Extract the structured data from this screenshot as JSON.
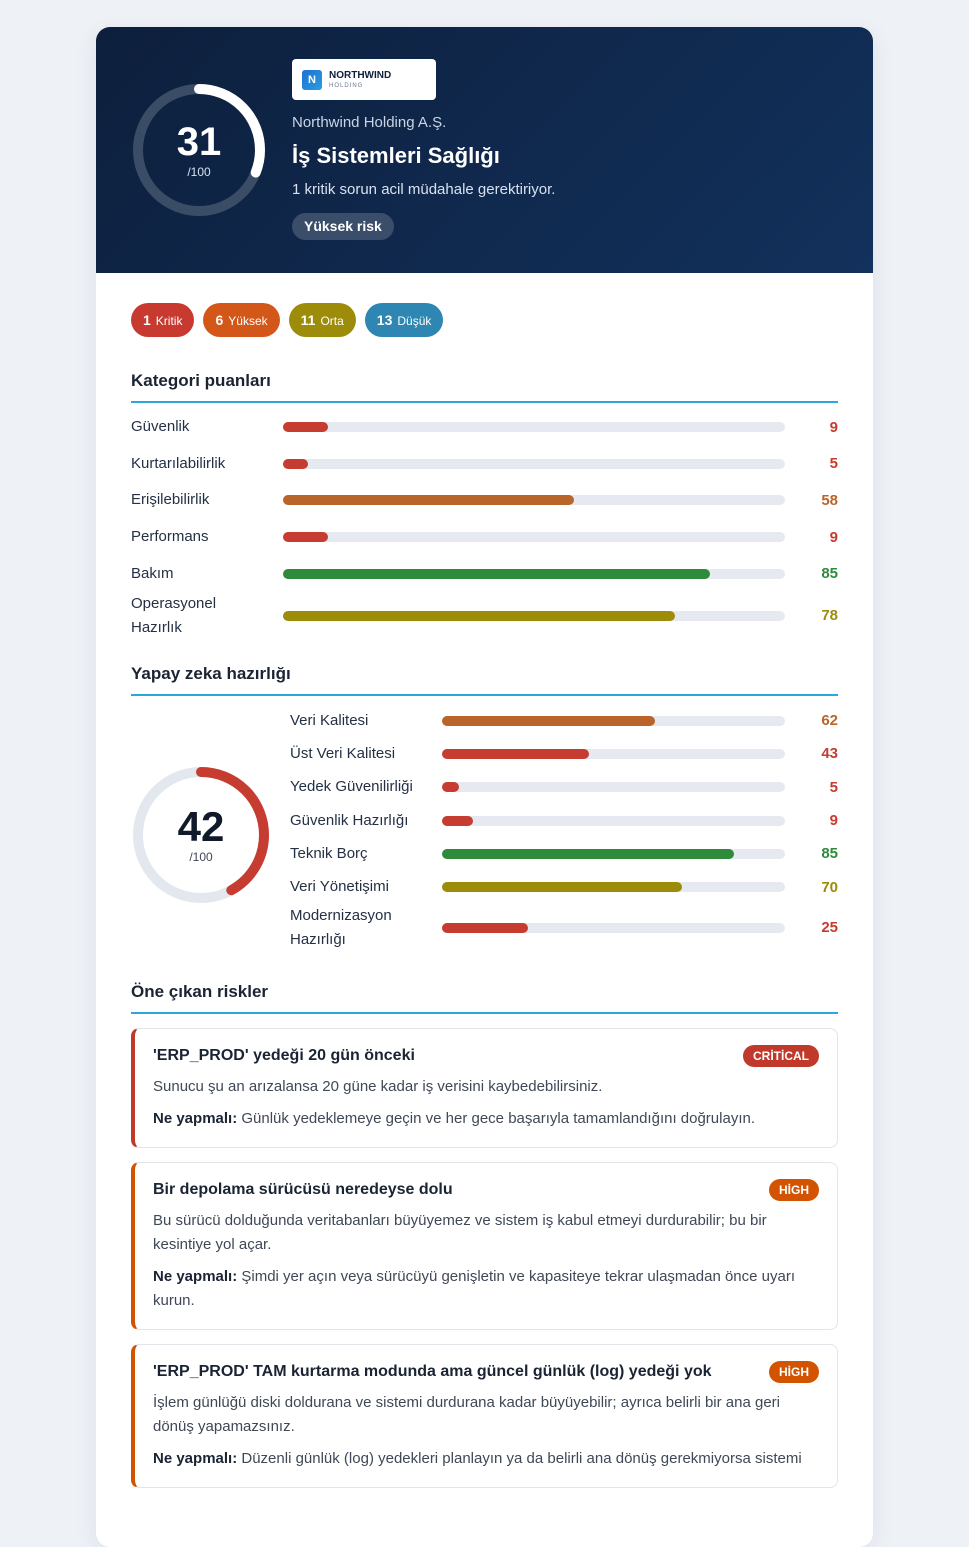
{
  "header": {
    "logo_letter": "N",
    "logo_name": "NORTHWIND",
    "logo_sub": "HOLDING",
    "company": "Northwind Holding A.Ş.",
    "title": "İş Sistemleri Sağlığı",
    "subtitle": "1 kritik sorun acil müdahale gerektiriyor.",
    "badge": "Yüksek risk",
    "score": 31,
    "score_max": {
      "value": 100,
      "label": "/100"
    }
  },
  "severity_counts": [
    {
      "count": 1,
      "label": "Kritik",
      "color": "#c83a30"
    },
    {
      "count": 6,
      "label": "Yüksek",
      "color": "#d4571a"
    },
    {
      "count": 11,
      "label": "Orta",
      "color": "#9c8c0a"
    },
    {
      "count": 13,
      "label": "Düşük",
      "color": "#2e86b2"
    }
  ],
  "category_scores": {
    "title": "Kategori puanları",
    "items": [
      {
        "label": "Güvenlik",
        "value": 9,
        "color": "#c63c31"
      },
      {
        "label": "Kurtarılabilirlik",
        "value": 5,
        "color": "#c63c31"
      },
      {
        "label": "Erişilebilirlik",
        "value": 58,
        "color": "#b9652a"
      },
      {
        "label": "Performans",
        "value": 9,
        "color": "#c63c31"
      },
      {
        "label": "Bakım",
        "value": 85,
        "color": "#2e8b3a"
      },
      {
        "label": "Operasyonel Hazırlık",
        "value": 78,
        "color": "#9c8c0a"
      }
    ]
  },
  "ai_readiness": {
    "title": "Yapay zeka hazırlığı",
    "score": 42,
    "score_max": {
      "value": 100,
      "label": "/100"
    },
    "color": "#c63c31",
    "items": [
      {
        "label": "Veri Kalitesi",
        "value": 62,
        "color": "#b9652a"
      },
      {
        "label": "Üst Veri Kalitesi",
        "value": 43,
        "color": "#c63c31"
      },
      {
        "label": "Yedek Güvenilirliği",
        "value": 5,
        "color": "#c63c31"
      },
      {
        "label": "Güvenlik Hazırlığı",
        "value": 9,
        "color": "#c63c31"
      },
      {
        "label": "Teknik Borç",
        "value": 85,
        "color": "#2e8b3a"
      },
      {
        "label": "Veri Yönetişimi",
        "value": 70,
        "color": "#9c8c0a"
      },
      {
        "label": "Modernizasyon Hazırlığı",
        "value": 25,
        "color": "#c63c31"
      }
    ]
  },
  "risks": {
    "title": "Öne çıkan riskler",
    "action_label": "Ne yapmalı:",
    "items": [
      {
        "title": "'ERP_PROD' yedeği 20 gün önceki",
        "severity": "CRİTİCAL",
        "color": "#c0392b",
        "description": "Sunucu şu an arızalansa 20 güne kadar iş verisini kaybedebilirsiniz.",
        "action": "Günlük yedeklemeye geçin ve her gece başarıyla tamamlandığını doğrulayın."
      },
      {
        "title": "Bir depolama sürücüsü neredeyse dolu",
        "severity": "HİGH",
        "color": "#d35400",
        "description": "Bu sürücü dolduğunda veritabanları büyüyemez ve sistem iş kabul etmeyi durdurabilir; bu bir kesintiye yol açar.",
        "action": "Şimdi yer açın veya sürücüyü genişletin ve kapasiteye tekrar ulaşmadan önce uyarı kurun."
      },
      {
        "title": "'ERP_PROD' TAM kurtarma modunda ama güncel günlük (log) yedeği yok",
        "severity": "HİGH",
        "color": "#d35400",
        "description": "İşlem günlüğü diski doldurana ve sistemi durdurana kadar büyüyebilir; ayrıca belirli bir ana geri dönüş yapamazsınız.",
        "action": "Düzenli günlük (log) yedekleri planlayın ya da belirli ana dönüş gerekmiyorsa sistemi"
      }
    ]
  }
}
